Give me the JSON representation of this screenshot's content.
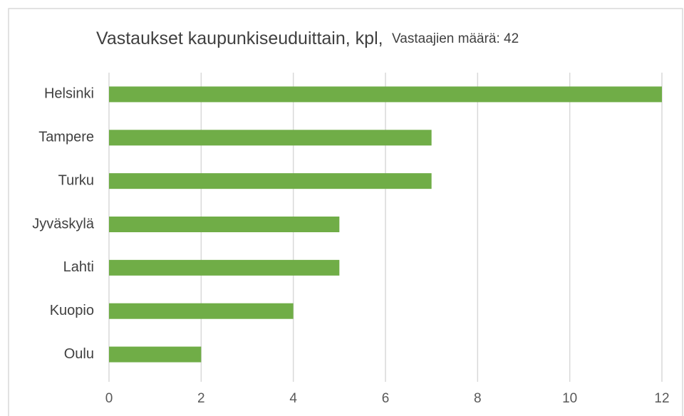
{
  "chart_data": {
    "type": "bar",
    "orientation": "horizontal",
    "title": "Vastaukset kaupunkiseuduittain,  kpl,",
    "subtitle": "Vastaajien määrä: 42",
    "categories": [
      "Helsinki",
      "Tampere",
      "Turku",
      "Jyväskylä",
      "Lahti",
      "Kuopio",
      "Oulu"
    ],
    "values": [
      12,
      7,
      7,
      5,
      5,
      4,
      2
    ],
    "color": "#70ad47",
    "xlim": [
      0,
      12
    ],
    "xticks": [
      0,
      2,
      4,
      6,
      8,
      10,
      12
    ],
    "grid": true
  }
}
